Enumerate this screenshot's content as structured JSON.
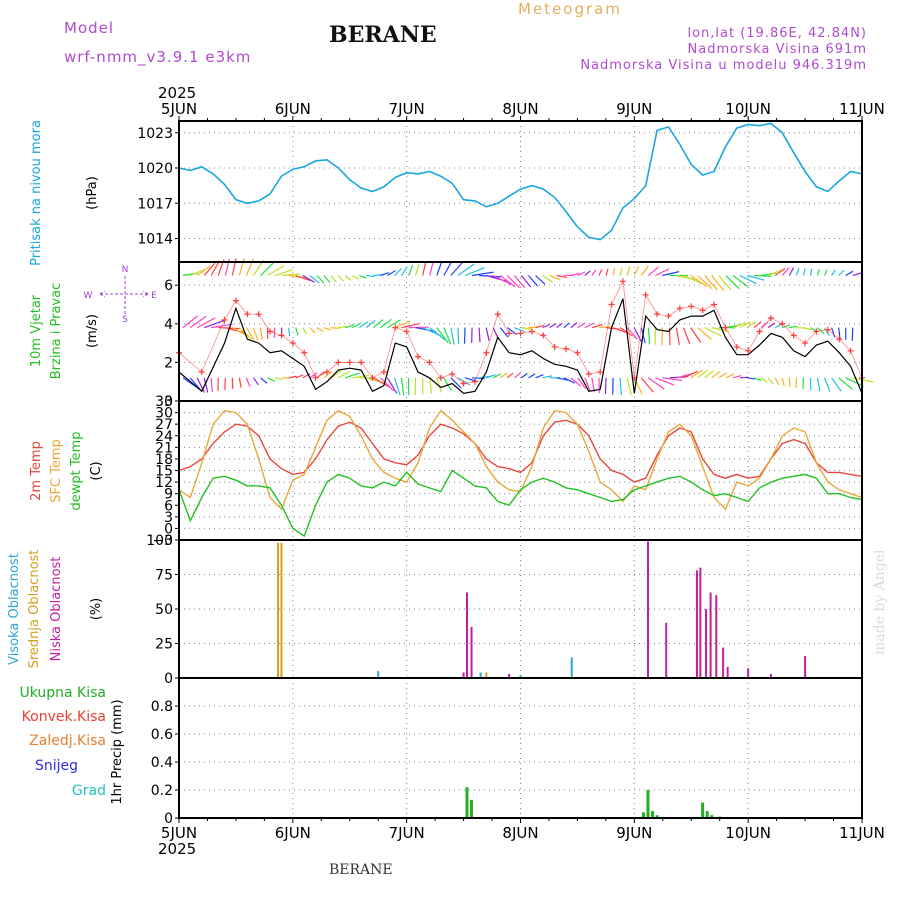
{
  "header": {
    "model_label": "Model",
    "model_name": "wrf-nmm_v3.9.1 e3km",
    "title": "BERANE",
    "meteogram_label": "Meteogram",
    "lonlat": "lon,lat (19.86E, 42.84N)",
    "altitude": "Nadmorska Visina 691m",
    "model_altitude": "Nadmorska Visina u modelu 946.319m",
    "bottom_title": "BERANE",
    "credit": "made by Angel"
  },
  "colors": {
    "pressure": "#1aa6e0",
    "temp2m": "#e8483c",
    "sfc": "#e8a83c",
    "dewpt": "#22c022",
    "wind_speed": "#000000",
    "gust_marker": "#ff3a3a",
    "cloud_high": "#2aa6d0",
    "cloud_mid": "#d4a020",
    "cloud_low": "#c020a0",
    "precip_total": "#22b022"
  },
  "chart_data": [
    {
      "type": "line",
      "panel": "pressure",
      "title": "Pritisak na nivou mora",
      "ylabel": "(hPa)",
      "ylim": [
        1012,
        1024
      ],
      "yticks": [
        1014,
        1017,
        1020,
        1023
      ],
      "x_start_label": "2025",
      "x_labels": [
        "5JUN",
        "6JUN",
        "7JUN",
        "8JUN",
        "9JUN",
        "10JUN",
        "11JUN"
      ],
      "x_end_label": "2025",
      "series": [
        {
          "name": "Pressure",
          "color": "#1aa6e0",
          "x": [
            0,
            0.1,
            0.2,
            0.3,
            0.4,
            0.5,
            0.6,
            0.7,
            0.8,
            0.9,
            1.0,
            1.1,
            1.2,
            1.3,
            1.4,
            1.5,
            1.6,
            1.7,
            1.8,
            1.9,
            2.0,
            2.1,
            2.2,
            2.3,
            2.4,
            2.5,
            2.6,
            2.7,
            2.8,
            2.9,
            3.0,
            3.1,
            3.2,
            3.3,
            3.4,
            3.5,
            3.6,
            3.7,
            3.8,
            3.9,
            4.0,
            4.1,
            4.2,
            4.3,
            4.4,
            4.5,
            4.6,
            4.7,
            4.8,
            4.9,
            5.0,
            5.1,
            5.2,
            5.3,
            5.4,
            5.5,
            5.6,
            5.7,
            5.8,
            5.9,
            6.0
          ],
          "values": [
            1020.0,
            1019.8,
            1020.1,
            1019.5,
            1018.6,
            1017.3,
            1017.0,
            1017.2,
            1017.8,
            1019.3,
            1019.9,
            1020.1,
            1020.6,
            1020.7,
            1020.0,
            1019.0,
            1018.3,
            1018.0,
            1018.4,
            1019.2,
            1019.6,
            1019.5,
            1019.7,
            1019.3,
            1018.7,
            1017.3,
            1017.2,
            1016.7,
            1017.0,
            1017.6,
            1018.2,
            1018.5,
            1018.2,
            1017.5,
            1016.3,
            1015.0,
            1014.1,
            1013.9,
            1014.7,
            1016.6,
            1017.4,
            1018.5,
            1023.2,
            1023.5,
            1022.0,
            1020.3,
            1019.4,
            1019.7,
            1021.8,
            1023.4,
            1023.7,
            1023.6,
            1023.8,
            1023.0,
            1021.3,
            1019.7,
            1018.4,
            1018.0,
            1018.9,
            1019.7,
            1019.5
          ]
        }
      ]
    },
    {
      "type": "line",
      "panel": "wind",
      "title": "10m Vjetar Brzina i Pravac",
      "ylabel": "(m/s)",
      "ylim": [
        0,
        7.2
      ],
      "yticks": [
        0,
        2,
        4,
        6
      ],
      "compass": {
        "top": "N",
        "bottom": "S",
        "left": "W",
        "right": "E"
      },
      "series": [
        {
          "name": "Wind speed",
          "color": "#000000",
          "x": [
            0,
            0.2,
            0.4,
            0.5,
            0.6,
            0.7,
            0.8,
            0.9,
            1.0,
            1.1,
            1.2,
            1.3,
            1.4,
            1.5,
            1.6,
            1.7,
            1.8,
            1.9,
            2.0,
            2.1,
            2.2,
            2.3,
            2.4,
            2.5,
            2.6,
            2.7,
            2.8,
            2.9,
            3.0,
            3.1,
            3.2,
            3.3,
            3.4,
            3.5,
            3.6,
            3.7,
            3.8,
            3.9,
            4.0,
            4.1,
            4.2,
            4.3,
            4.4,
            4.5,
            4.6,
            4.7,
            4.8,
            4.9,
            5.0,
            5.1,
            5.2,
            5.3,
            5.4,
            5.5,
            5.6,
            5.7,
            5.8,
            5.9,
            6.0
          ],
          "values": [
            1.5,
            0.5,
            3.0,
            4.8,
            3.2,
            3.0,
            2.5,
            2.6,
            2.2,
            1.8,
            0.6,
            1.0,
            1.6,
            1.7,
            1.6,
            0.5,
            0.8,
            3.0,
            2.8,
            1.5,
            1.2,
            0.7,
            0.9,
            0.4,
            0.5,
            1.5,
            3.3,
            2.5,
            2.4,
            2.6,
            2.2,
            1.9,
            1.8,
            1.6,
            0.5,
            0.6,
            3.8,
            5.3,
            0.4,
            4.4,
            3.7,
            3.6,
            4.2,
            4.4,
            4.4,
            4.7,
            3.3,
            2.4,
            2.4,
            2.9,
            3.5,
            3.3,
            2.6,
            2.3,
            2.9,
            3.1,
            2.5,
            1.8,
            0.4
          ]
        },
        {
          "name": "Wind gust",
          "color": "#ff3a3a",
          "x": [
            0,
            0.2,
            0.4,
            0.5,
            0.6,
            0.7,
            0.8,
            0.9,
            1.0,
            1.1,
            1.2,
            1.3,
            1.4,
            1.5,
            1.6,
            1.7,
            1.8,
            1.9,
            2.0,
            2.1,
            2.2,
            2.3,
            2.4,
            2.5,
            2.6,
            2.7,
            2.8,
            2.9,
            3.0,
            3.1,
            3.2,
            3.3,
            3.4,
            3.5,
            3.6,
            3.7,
            3.8,
            3.9,
            4.0,
            4.1,
            4.2,
            4.3,
            4.4,
            4.5,
            4.6,
            4.7,
            4.8,
            4.9,
            5.0,
            5.1,
            5.2,
            5.3,
            5.4,
            5.5,
            5.6,
            5.7,
            5.8,
            5.9,
            6.0
          ],
          "values": [
            2.5,
            1.5,
            4.2,
            5.2,
            4.5,
            4.5,
            3.6,
            3.4,
            3.0,
            2.5,
            1.2,
            1.5,
            2.0,
            2.0,
            2.0,
            1.2,
            1.5,
            3.8,
            3.6,
            2.3,
            2.0,
            1.2,
            1.4,
            0.9,
            1.0,
            2.5,
            4.5,
            3.5,
            3.5,
            3.6,
            3.4,
            2.8,
            2.7,
            2.5,
            1.4,
            1.5,
            5.0,
            6.2,
            1.2,
            5.5,
            4.5,
            4.4,
            4.8,
            4.9,
            4.7,
            5.0,
            3.8,
            2.8,
            2.6,
            3.6,
            4.3,
            4.0,
            3.4,
            3.0,
            3.6,
            3.7,
            3.2,
            2.6,
            1.2
          ]
        }
      ],
      "direction_rows": [
        {
          "level": 6.5,
          "direction": "mixed"
        },
        {
          "level": 3.8,
          "direction": "mixed"
        },
        {
          "level": 1.2,
          "direction": "mixed"
        }
      ]
    },
    {
      "type": "line",
      "panel": "temperature",
      "labels": [
        "2m Temp",
        "SFC Temp",
        "dewpt Temp"
      ],
      "ylabel": "(C)",
      "ylim": [
        -3,
        33
      ],
      "yticks": [
        -3,
        0,
        3,
        6,
        9,
        12,
        15,
        18,
        21,
        24,
        27,
        30,
        33
      ],
      "x": [
        0,
        0.1,
        0.2,
        0.3,
        0.4,
        0.5,
        0.6,
        0.7,
        0.8,
        0.9,
        1.0,
        1.1,
        1.2,
        1.3,
        1.4,
        1.5,
        1.6,
        1.7,
        1.8,
        1.9,
        2.0,
        2.1,
        2.2,
        2.3,
        2.4,
        2.5,
        2.6,
        2.7,
        2.8,
        2.9,
        3.0,
        3.1,
        3.2,
        3.3,
        3.4,
        3.5,
        3.6,
        3.7,
        3.8,
        3.9,
        4.0,
        4.1,
        4.2,
        4.3,
        4.4,
        4.5,
        4.6,
        4.7,
        4.8,
        4.9,
        5.0,
        5.1,
        5.2,
        5.3,
        5.4,
        5.5,
        5.6,
        5.7,
        5.8,
        5.9,
        6.0
      ],
      "series": [
        {
          "name": "2m Temp",
          "color": "#e8483c",
          "values": [
            15,
            16,
            18,
            22,
            25,
            27,
            26.5,
            24,
            18,
            15.5,
            14,
            14.5,
            18,
            23,
            26.5,
            27.5,
            26,
            22,
            18,
            17,
            16.5,
            19,
            24,
            27,
            26,
            24.5,
            22,
            18,
            16,
            15.5,
            14.5,
            17,
            24,
            27.5,
            28,
            27,
            24,
            18,
            15,
            14,
            12,
            13,
            19,
            24,
            26,
            25,
            18,
            14,
            13,
            14,
            13,
            13.5,
            18,
            22,
            23,
            22,
            17,
            14.5,
            14.5,
            14,
            13.5
          ]
        },
        {
          "name": "SFC Temp",
          "color": "#e8a83c",
          "values": [
            10,
            8,
            17,
            27,
            30.5,
            30,
            27,
            18,
            8,
            5,
            12.5,
            14,
            21,
            28,
            30.5,
            29,
            24,
            18,
            14.5,
            13,
            12,
            17,
            26,
            30.5,
            28,
            25,
            22,
            16,
            12,
            10,
            9.5,
            16,
            26,
            30.5,
            30,
            27,
            20,
            12,
            10,
            7,
            11,
            10,
            18,
            25,
            27,
            24,
            16,
            8,
            5,
            12,
            11,
            13,
            18,
            24,
            26,
            25,
            17,
            12,
            10,
            9,
            8
          ]
        },
        {
          "name": "dewpt Temp",
          "color": "#22c022",
          "values": [
            10,
            2,
            8,
            13,
            13.5,
            12.5,
            11,
            11,
            10.5,
            6,
            0,
            -2,
            6,
            12,
            14,
            13,
            11,
            10.5,
            12,
            11,
            14.5,
            11.5,
            10.5,
            9.5,
            15,
            13,
            11,
            10.5,
            7,
            6,
            10,
            12,
            13,
            12,
            10.5,
            10,
            9,
            8,
            7,
            7.5,
            10,
            11,
            12,
            13,
            13.5,
            12,
            10,
            8.5,
            9,
            8,
            7,
            10.5,
            12,
            13,
            13.5,
            14,
            13,
            9,
            9,
            8,
            7.5
          ]
        }
      ]
    },
    {
      "type": "bar",
      "panel": "clouds",
      "labels": [
        "Visoka Oblacnost",
        "Srednja Oblacnost",
        "Niska Oblacnost"
      ],
      "ylabel": "(%)",
      "ylim": [
        0,
        100
      ],
      "yticks": [
        0,
        25,
        50,
        75,
        100
      ],
      "series": [
        {
          "name": "Visoka Oblacnost",
          "color": "#2aa6d0",
          "x": [
            1.75,
            2.65,
            3.0,
            3.45
          ],
          "values": [
            5,
            4,
            2,
            15
          ]
        },
        {
          "name": "Srednja Oblacnost",
          "color": "#d4a020",
          "x": [
            0.87,
            0.9,
            2.7
          ],
          "values": [
            98,
            98,
            4
          ]
        },
        {
          "name": "Niska Oblacnost",
          "color": "#c020a0",
          "x": [
            2.5,
            2.53,
            2.57,
            2.9,
            4.12,
            4.28,
            4.55,
            4.58,
            4.63,
            4.67,
            4.72,
            4.78,
            4.82,
            5.0,
            5.2,
            5.5
          ],
          "values": [
            4,
            62,
            37,
            3,
            99,
            40,
            78,
            80,
            50,
            62,
            60,
            22,
            8,
            7,
            3,
            16
          ]
        }
      ]
    },
    {
      "type": "bar",
      "panel": "precip",
      "labels": [
        "Ukupna Kisa",
        "Konvek.Kisa",
        "Zaledj.Kisa",
        "Snijeg",
        "Grad"
      ],
      "label_colors": [
        "#22b022",
        "#e84030",
        "#e88030",
        "#3030e0",
        "#20c0c0"
      ],
      "ylabel": "1hr Precip (mm)",
      "ylim": [
        0,
        1.0
      ],
      "yticks": [
        0,
        0.2,
        0.4,
        0.6,
        0.8
      ],
      "x_labels": [
        "5JUN",
        "6JUN",
        "7JUN",
        "8JUN",
        "9JUN",
        "10JUN",
        "11JUN"
      ],
      "x_end_label": "2025",
      "series": [
        {
          "name": "Ukupna Kisa",
          "color": "#22b022",
          "x": [
            2.53,
            2.57,
            4.08,
            4.12,
            4.16,
            4.2,
            4.6,
            4.64,
            4.68,
            4.75
          ],
          "values": [
            0.22,
            0.13,
            0.04,
            0.2,
            0.05,
            0.02,
            0.11,
            0.05,
            0.02,
            0.01
          ]
        },
        {
          "name": "Konvek.Kisa",
          "color": "#e84030",
          "x": [
            2.02
          ],
          "values": [
            0.005
          ]
        }
      ]
    }
  ]
}
